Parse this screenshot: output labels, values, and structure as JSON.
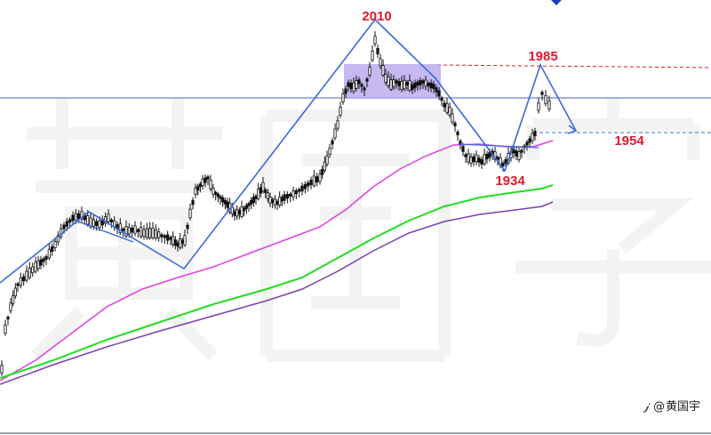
{
  "chart_data": {
    "type": "candlestick",
    "annotations": {
      "peak_label": "2010",
      "right_peak_label": "1985",
      "trough_label": "1934",
      "target_label": "1954"
    },
    "levels": {
      "horizontal_line": 1970,
      "red_resistance": 1985,
      "blue_target": 1954
    },
    "y_range": [
      1750,
      2030
    ],
    "moving_averages": [
      {
        "color": "#e040e0"
      },
      {
        "color": "#22dd22"
      },
      {
        "color": "#7b3fb0"
      }
    ],
    "colors": {
      "pattern_lines": "#3a6ad9",
      "labels": "#e0192d",
      "zone": "#b8a8ee",
      "horizontal": "#4a5fc1"
    }
  },
  "watermark": {
    "handle_prefix": "@",
    "name": "黄国宇"
  }
}
